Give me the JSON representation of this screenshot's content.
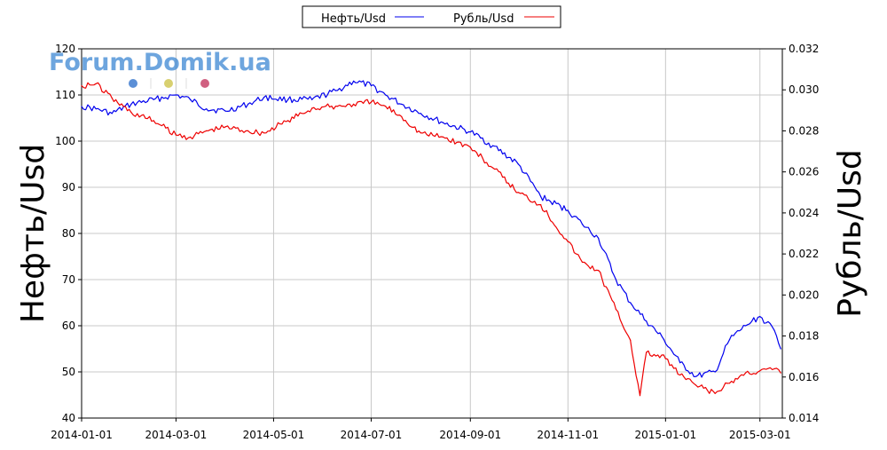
{
  "watermark": {
    "text": "Forum.Domik.ua",
    "color": "#2f7fd0",
    "dot_colors": [
      "#5b8fd6",
      "#d8d070",
      "#d06080"
    ]
  },
  "chart_data": {
    "type": "line",
    "title": "",
    "xlabel": "",
    "ylabel": "Нефть/Usd",
    "y2label": "Рубль/Usd",
    "xlim": [
      "2014-01-01",
      "2015-03-15"
    ],
    "ylim": [
      40,
      120
    ],
    "y2lim": [
      0.014,
      0.032
    ],
    "x_ticks": [
      "2014-01-01",
      "2014-03-01",
      "2014-05-01",
      "2014-07-01",
      "2014-09-01",
      "2014-11-01",
      "2015-01-01",
      "2015-03-01"
    ],
    "y_ticks": [
      "40",
      "50",
      "60",
      "70",
      "80",
      "90",
      "100",
      "110",
      "120"
    ],
    "y2_ticks": [
      "0.014",
      "0.016",
      "0.018",
      "0.020",
      "0.022",
      "0.024",
      "0.026",
      "0.028",
      "0.030",
      "0.032"
    ],
    "grid": true,
    "legend_position": "top-center",
    "series": [
      {
        "name": "Нефть/Usd",
        "axis": "left",
        "color": "#0000ee",
        "points": [
          [
            "2014-01-01",
            107.5
          ],
          [
            "2014-01-10",
            107
          ],
          [
            "2014-01-20",
            106
          ],
          [
            "2014-02-01",
            108
          ],
          [
            "2014-02-15",
            109
          ],
          [
            "2014-03-01",
            110
          ],
          [
            "2014-03-10",
            109
          ],
          [
            "2014-03-20",
            107
          ],
          [
            "2014-04-01",
            106.5
          ],
          [
            "2014-04-15",
            108
          ],
          [
            "2014-04-25",
            109.5
          ],
          [
            "2014-05-10",
            109
          ],
          [
            "2014-05-25",
            109
          ],
          [
            "2014-06-10",
            111
          ],
          [
            "2014-06-20",
            113
          ],
          [
            "2014-07-01",
            112
          ],
          [
            "2014-07-10",
            110
          ],
          [
            "2014-07-20",
            108
          ],
          [
            "2014-08-01",
            106
          ],
          [
            "2014-08-15",
            104
          ],
          [
            "2014-09-01",
            102
          ],
          [
            "2014-09-15",
            99
          ],
          [
            "2014-10-01",
            95
          ],
          [
            "2014-10-15",
            88
          ],
          [
            "2014-11-01",
            85
          ],
          [
            "2014-11-10",
            82
          ],
          [
            "2014-11-20",
            79
          ],
          [
            "2014-12-01",
            70
          ],
          [
            "2014-12-10",
            65
          ],
          [
            "2014-12-20",
            61
          ],
          [
            "2014-12-31",
            57
          ],
          [
            "2015-01-10",
            52
          ],
          [
            "2015-01-20",
            49
          ],
          [
            "2015-02-01",
            50
          ],
          [
            "2015-02-10",
            57
          ],
          [
            "2015-02-20",
            60
          ],
          [
            "2015-03-01",
            62
          ],
          [
            "2015-03-10",
            59
          ],
          [
            "2015-03-14",
            55
          ]
        ]
      },
      {
        "name": "Рубль/Usd",
        "axis": "right",
        "color": "#ee0000",
        "points": [
          [
            "2014-01-01",
            0.0302
          ],
          [
            "2014-01-10",
            0.0303
          ],
          [
            "2014-01-20",
            0.0296
          ],
          [
            "2014-02-01",
            0.0289
          ],
          [
            "2014-02-15",
            0.0285
          ],
          [
            "2014-03-01",
            0.0278
          ],
          [
            "2014-03-10",
            0.0277
          ],
          [
            "2014-03-20",
            0.028
          ],
          [
            "2014-04-01",
            0.0282
          ],
          [
            "2014-04-15",
            0.028
          ],
          [
            "2014-04-25",
            0.0279
          ],
          [
            "2014-05-10",
            0.0285
          ],
          [
            "2014-05-25",
            0.0291
          ],
          [
            "2014-06-10",
            0.0292
          ],
          [
            "2014-06-20",
            0.0293
          ],
          [
            "2014-07-01",
            0.0294
          ],
          [
            "2014-07-10",
            0.0292
          ],
          [
            "2014-07-20",
            0.0287
          ],
          [
            "2014-08-01",
            0.0279
          ],
          [
            "2014-08-15",
            0.0277
          ],
          [
            "2014-09-01",
            0.0272
          ],
          [
            "2014-09-15",
            0.0262
          ],
          [
            "2014-10-01",
            0.025
          ],
          [
            "2014-10-15",
            0.0244
          ],
          [
            "2014-11-01",
            0.0226
          ],
          [
            "2014-11-10",
            0.0216
          ],
          [
            "2014-11-20",
            0.0212
          ],
          [
            "2014-12-01",
            0.0193
          ],
          [
            "2014-12-10",
            0.0178
          ],
          [
            "2014-12-16",
            0.0151
          ],
          [
            "2014-12-20",
            0.0172
          ],
          [
            "2015-01-01",
            0.0169
          ],
          [
            "2015-01-10",
            0.0161
          ],
          [
            "2015-01-20",
            0.0156
          ],
          [
            "2015-02-01",
            0.0152
          ],
          [
            "2015-02-10",
            0.0157
          ],
          [
            "2015-02-20",
            0.0162
          ],
          [
            "2015-03-01",
            0.0163
          ],
          [
            "2015-03-10",
            0.0164
          ],
          [
            "2015-03-14",
            0.0162
          ]
        ]
      }
    ]
  }
}
